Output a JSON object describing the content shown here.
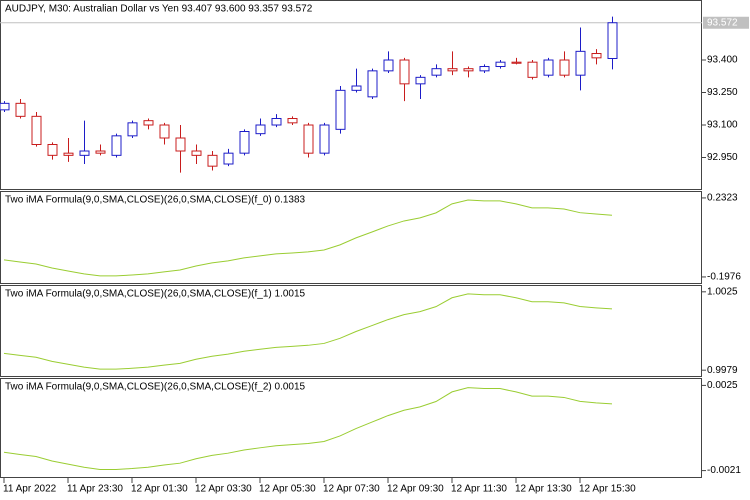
{
  "chart_data": [
    {
      "type": "candlestick",
      "title": "AUDJPY, M30:  Australian Dollar vs Yen  93.407 93.600 93.357 93.572",
      "categories": [
        "11 Apr 2022",
        null,
        null,
        null,
        "11 Apr 23:30",
        null,
        null,
        null,
        "12 Apr 01:30",
        null,
        null,
        null,
        "12 Apr 03:30",
        null,
        null,
        null,
        "12 Apr 05:30",
        null,
        null,
        null,
        "12 Apr 07:30",
        null,
        null,
        null,
        "12 Apr 09:30",
        null,
        null,
        null,
        "12 Apr 11:30",
        null,
        null,
        null,
        "12 Apr 13:30",
        null,
        null,
        null,
        "12 Apr 15:30",
        null,
        null
      ],
      "open": [
        93.17,
        93.2,
        93.14,
        93.01,
        92.97,
        92.96,
        92.98,
        92.96,
        93.05,
        93.12,
        93.1,
        93.04,
        92.98,
        92.96,
        92.92,
        92.97,
        93.06,
        93.1,
        93.13,
        93.1,
        92.97,
        93.08,
        93.26,
        93.23,
        93.35,
        93.4,
        93.29,
        93.33,
        93.36,
        93.36,
        93.35,
        93.37,
        93.39,
        93.39,
        93.33,
        93.4,
        93.33,
        93.43,
        93.407
      ],
      "high": [
        93.21,
        93.22,
        93.16,
        93.02,
        93.04,
        93.12,
        93.01,
        93.06,
        93.12,
        93.13,
        93.11,
        93.1,
        93.01,
        92.98,
        92.99,
        93.08,
        93.13,
        93.15,
        93.14,
        93.11,
        93.11,
        93.28,
        93.36,
        93.36,
        93.44,
        93.41,
        93.33,
        93.38,
        93.44,
        93.37,
        93.38,
        93.4,
        93.41,
        93.4,
        93.41,
        93.44,
        93.55,
        93.45,
        93.6
      ],
      "low": [
        93.16,
        93.13,
        93.0,
        92.94,
        92.93,
        92.92,
        92.96,
        92.95,
        93.04,
        93.08,
        93.01,
        92.88,
        92.92,
        92.89,
        92.91,
        92.96,
        93.05,
        93.09,
        93.1,
        92.95,
        92.96,
        93.06,
        93.25,
        93.22,
        93.34,
        93.21,
        93.22,
        93.32,
        93.33,
        93.32,
        93.34,
        93.36,
        93.38,
        93.31,
        93.32,
        93.32,
        93.26,
        93.38,
        93.357
      ],
      "close": [
        93.2,
        93.14,
        93.01,
        92.96,
        92.96,
        92.98,
        92.97,
        93.05,
        93.11,
        93.1,
        93.04,
        92.98,
        92.96,
        92.91,
        92.97,
        93.07,
        93.1,
        93.13,
        93.11,
        92.97,
        93.1,
        93.26,
        93.28,
        93.35,
        93.4,
        93.29,
        93.32,
        93.36,
        93.35,
        93.35,
        93.37,
        93.39,
        93.385,
        93.32,
        93.4,
        93.33,
        93.44,
        93.41,
        93.572
      ],
      "up_color": "#1c1cc8",
      "down_color": "#c81c1c",
      "last_price": 93.572,
      "ylim": [
        92.8,
        93.677
      ],
      "yticks": [
        {
          "value": 92.95,
          "label": "92.950"
        },
        {
          "value": 93.1,
          "label": "93.100"
        },
        {
          "value": 93.25,
          "label": "93.250"
        },
        {
          "value": 93.4,
          "label": "93.400"
        }
      ]
    },
    {
      "type": "line",
      "title": "Two iMA Formula(9,0,SMA,CLOSE)(26,0,SMA,CLOSE)(f_0) 0.1383",
      "color": "#9acd32",
      "values": [
        -0.105,
        -0.116,
        -0.127,
        -0.149,
        -0.165,
        -0.181,
        -0.192,
        -0.192,
        -0.187,
        -0.181,
        -0.17,
        -0.16,
        -0.138,
        -0.121,
        -0.11,
        -0.094,
        -0.083,
        -0.072,
        -0.067,
        -0.061,
        -0.051,
        -0.023,
        0.015,
        0.047,
        0.08,
        0.107,
        0.124,
        0.151,
        0.2,
        0.221,
        0.216,
        0.216,
        0.2,
        0.178,
        0.178,
        0.172,
        0.152,
        0.145,
        0.1383
      ],
      "ylim": [
        -0.236,
        0.27
      ],
      "yticks": [
        -0.1976,
        0.2323
      ]
    },
    {
      "type": "line",
      "title": "Two iMA Formula(9,0,SMA,CLOSE)(26,0,SMA,CLOSE)(f_1) 1.0015",
      "color": "#9acd32",
      "values": [
        0.99889,
        0.99877,
        0.99866,
        0.99842,
        0.99825,
        0.99808,
        0.99796,
        0.99796,
        0.99801,
        0.99808,
        0.9982,
        0.9983,
        0.99854,
        0.99872,
        0.99884,
        0.99901,
        0.99913,
        0.99924,
        0.9993,
        0.99936,
        0.99947,
        0.99977,
        1.00017,
        1.00052,
        1.00087,
        1.00116,
        1.00134,
        1.00163,
        1.00215,
        1.00238,
        1.00233,
        1.00233,
        1.00215,
        1.00192,
        1.00192,
        1.00185,
        1.00164,
        1.00156,
        1.0015
      ],
      "ylim": [
        0.9975,
        1.0029
      ],
      "yticks": [
        0.9979,
        1.0025
      ]
    },
    {
      "type": "line",
      "title": "Two iMA Formula(9,0,SMA,CLOSE)(26,0,SMA,CLOSE)(f_2) 0.0015",
      "color": "#9acd32",
      "values": [
        -0.00111,
        -0.00123,
        -0.00134,
        -0.00158,
        -0.00175,
        -0.00192,
        -0.00204,
        -0.00204,
        -0.00199,
        -0.00192,
        -0.0018,
        -0.0017,
        -0.00146,
        -0.00128,
        -0.00116,
        -0.00099,
        -0.00087,
        -0.00076,
        -0.0007,
        -0.00064,
        -0.00053,
        -0.00023,
        0.00017,
        0.00052,
        0.00087,
        0.00116,
        0.00134,
        0.00163,
        0.00215,
        0.00238,
        0.00233,
        0.00233,
        0.00215,
        0.00192,
        0.00192,
        0.00185,
        0.00164,
        0.00156,
        0.0015
      ],
      "ylim": [
        -0.0025,
        0.0029
      ],
      "yticks": [
        -0.0021,
        0.0025
      ]
    }
  ]
}
